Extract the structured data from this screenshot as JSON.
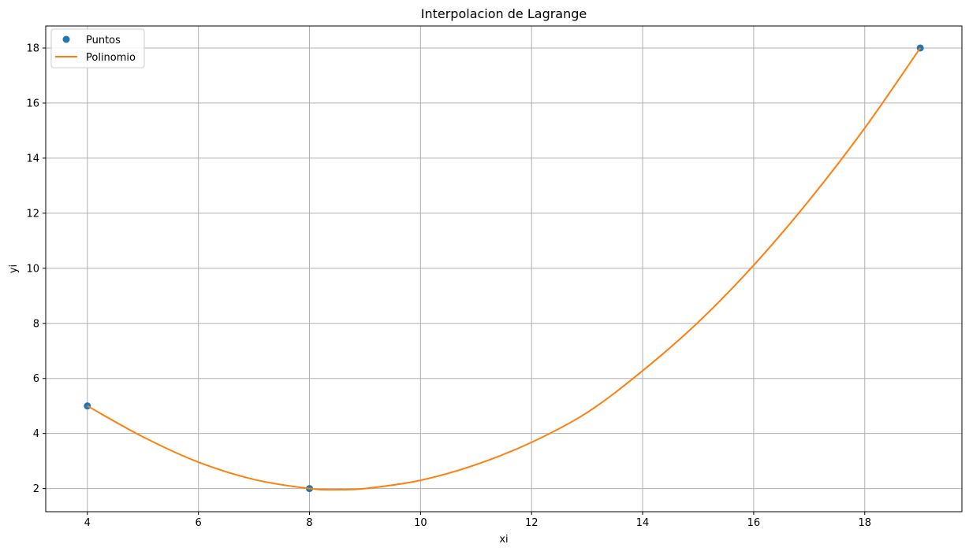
{
  "chart_data": {
    "type": "line",
    "title": "Interpolacion de Lagrange",
    "xlabel": "xi",
    "ylabel": "yi",
    "xlim": [
      3.25,
      19.75
    ],
    "ylim": [
      1.16,
      18.8
    ],
    "xticks": [
      4,
      6,
      8,
      10,
      12,
      14,
      16,
      18
    ],
    "yticks": [
      2,
      4,
      6,
      8,
      10,
      12,
      14,
      16,
      18
    ],
    "grid": true,
    "legend_position": "upper left",
    "series": [
      {
        "name": "Puntos",
        "kind": "scatter",
        "color": "#1f77b4",
        "x": [
          4,
          8,
          19
        ],
        "y": [
          5,
          2,
          18
        ]
      },
      {
        "name": "Polinomio",
        "kind": "line",
        "color": "#ff7f0e",
        "x": [
          4,
          5,
          6,
          7,
          8,
          8.5,
          9,
          10,
          11,
          12,
          13,
          14,
          15,
          16,
          17,
          18,
          19
        ],
        "y": [
          5,
          3.88,
          2.96,
          2.33,
          2.0,
          1.96,
          2.0,
          2.3,
          2.87,
          3.68,
          4.76,
          6.28,
          8.04,
          10.11,
          12.47,
          15.09,
          18
        ]
      }
    ]
  }
}
